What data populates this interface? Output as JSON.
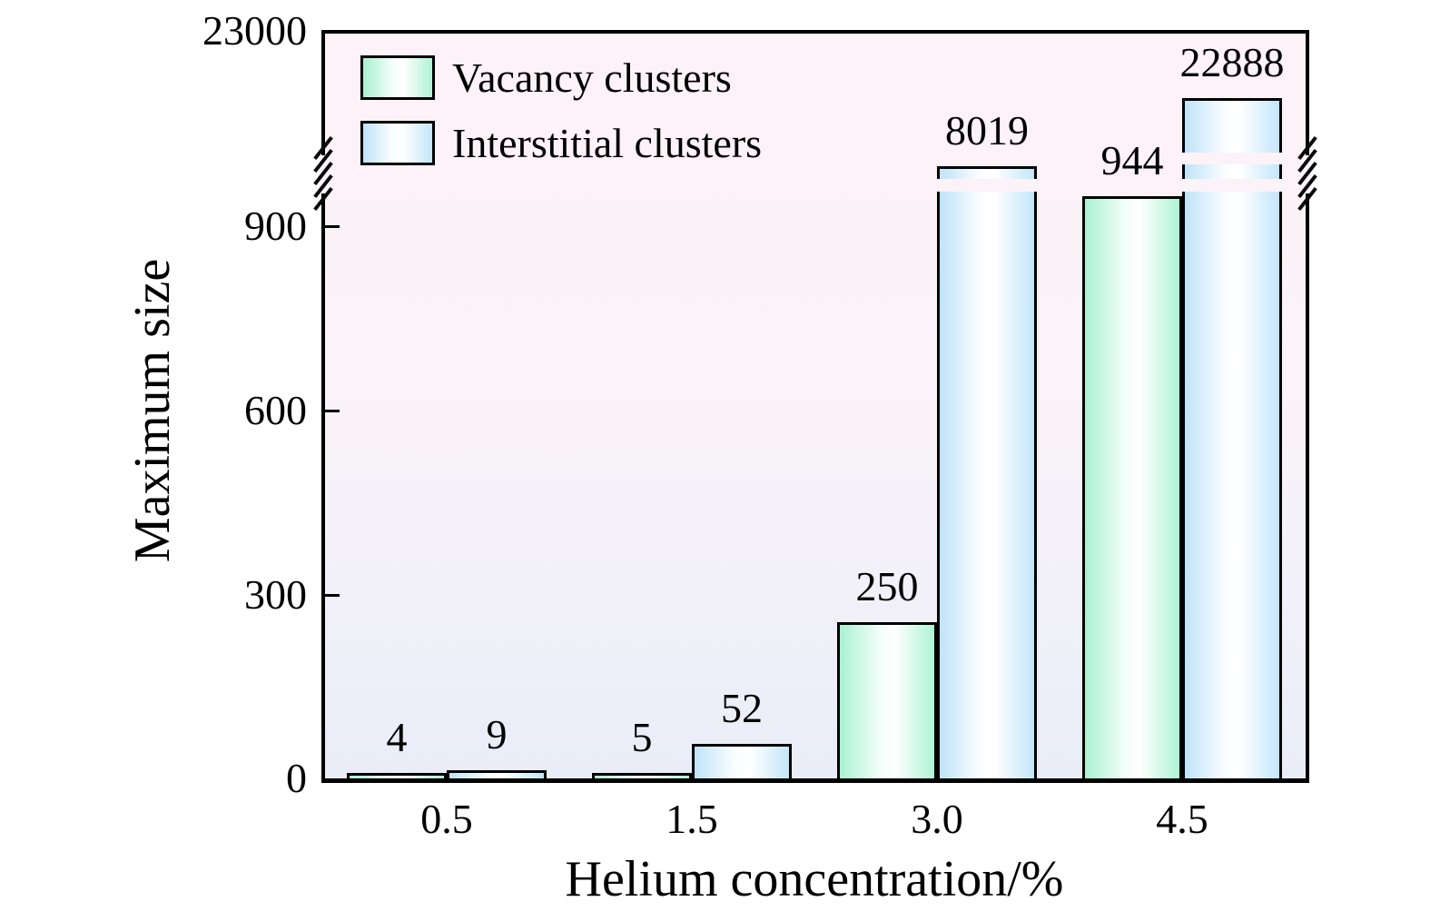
{
  "chart_data": {
    "type": "bar",
    "title": "",
    "xlabel": "Helium concentration/%",
    "ylabel": "Maximum size",
    "categories": [
      "0.5",
      "1.5",
      "3.0",
      "4.5"
    ],
    "series": [
      {
        "name": "Vacancy clusters",
        "values": [
          4,
          5,
          250,
          944
        ],
        "fill_edge": "#a9f1d0",
        "fill_center": "#ffffff"
      },
      {
        "name": "Interstitial clusters",
        "values": [
          9,
          52,
          8019,
          22888
        ],
        "fill_edge": "#bfe3f9",
        "fill_center": "#ffffff"
      }
    ],
    "bar_value_labels": [
      [
        "4",
        "5",
        "250",
        "944"
      ],
      [
        "9",
        "52",
        "8019",
        "22888"
      ]
    ],
    "y_ticks": [
      0,
      300,
      600,
      900
    ],
    "y_axis_break": {
      "enabled": true,
      "top_tick_label": "23000",
      "between": [
        944,
        23000
      ]
    },
    "ylim": [
      0,
      23000
    ],
    "grid": false,
    "legend_position": "top-left",
    "outline_color": "#000000",
    "plot_background_top": "#fdf2f8",
    "plot_background_bottom": "#e9edf8",
    "page_background": "#ffffff"
  }
}
